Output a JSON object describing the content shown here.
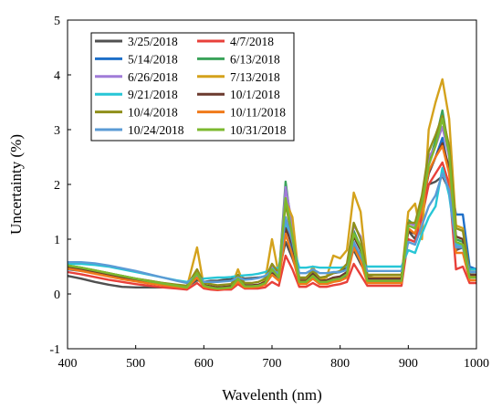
{
  "chart_data": {
    "type": "line",
    "title": "",
    "xlabel": "Wavelenth (nm)",
    "ylabel": "Uncertainty (%)",
    "xlim": [
      400,
      1000
    ],
    "ylim": [
      -1,
      5
    ],
    "xticks": [
      "400",
      "500",
      "600",
      "700",
      "800",
      "900",
      "1000"
    ],
    "yticks": [
      "-1",
      "0",
      "1",
      "2",
      "3",
      "4",
      "5"
    ],
    "grid": false,
    "legend_position": "top-left",
    "legend_labels": [
      "3/25/2018",
      "4/7/2018",
      "5/14/2018",
      "6/13/2018",
      "6/26/2018",
      "7/13/2018",
      "9/21/2018",
      "10/1/2018",
      "10/4/2018",
      "10/11/2018",
      "10/24/2018",
      "10/31/2018"
    ],
    "x": [
      400,
      420,
      440,
      460,
      480,
      500,
      520,
      540,
      560,
      575,
      590,
      600,
      610,
      620,
      630,
      640,
      650,
      660,
      670,
      680,
      690,
      700,
      710,
      720,
      730,
      740,
      750,
      760,
      770,
      780,
      790,
      800,
      810,
      820,
      830,
      840,
      850,
      860,
      870,
      880,
      890,
      900,
      910,
      920,
      930,
      940,
      950,
      960,
      970,
      980,
      990,
      1000
    ],
    "series": [
      {
        "name": "3/25/2018",
        "color": "#505050",
        "values": [
          0.33,
          0.28,
          0.22,
          0.17,
          0.13,
          0.12,
          0.12,
          0.12,
          0.12,
          0.13,
          0.25,
          0.22,
          0.24,
          0.24,
          0.26,
          0.27,
          0.32,
          0.28,
          0.29,
          0.3,
          0.32,
          0.45,
          0.4,
          0.95,
          0.65,
          0.28,
          0.28,
          0.4,
          0.28,
          0.32,
          0.38,
          0.4,
          0.5,
          0.8,
          0.55,
          0.33,
          0.3,
          0.3,
          0.3,
          0.3,
          0.3,
          1.15,
          1.0,
          1.5,
          2.0,
          2.05,
          2.15,
          1.9,
          0.8,
          0.85,
          0.45,
          0.45
        ]
      },
      {
        "name": "4/7/2018",
        "color": "#e8403a",
        "values": [
          0.4,
          0.36,
          0.31,
          0.26,
          0.22,
          0.18,
          0.15,
          0.12,
          0.1,
          0.08,
          0.2,
          0.1,
          0.08,
          0.07,
          0.08,
          0.08,
          0.18,
          0.1,
          0.1,
          0.1,
          0.12,
          0.22,
          0.15,
          0.7,
          0.45,
          0.13,
          0.13,
          0.2,
          0.13,
          0.13,
          0.16,
          0.18,
          0.22,
          0.55,
          0.35,
          0.15,
          0.15,
          0.15,
          0.15,
          0.15,
          0.15,
          1.0,
          0.95,
          1.4,
          2.0,
          2.2,
          2.4,
          2.0,
          0.45,
          0.5,
          0.2,
          0.2
        ]
      },
      {
        "name": "5/14/2018",
        "color": "#1e6fc8",
        "values": [
          0.45,
          0.42,
          0.38,
          0.33,
          0.29,
          0.25,
          0.21,
          0.18,
          0.15,
          0.12,
          0.3,
          0.15,
          0.12,
          0.1,
          0.11,
          0.12,
          0.25,
          0.14,
          0.14,
          0.15,
          0.18,
          0.35,
          0.25,
          1.3,
          0.8,
          0.2,
          0.2,
          0.3,
          0.2,
          0.2,
          0.24,
          0.26,
          0.32,
          0.95,
          0.65,
          0.22,
          0.22,
          0.22,
          0.22,
          0.22,
          0.22,
          1.25,
          1.2,
          1.6,
          2.2,
          2.5,
          2.85,
          2.2,
          1.45,
          1.45,
          0.5,
          0.45
        ]
      },
      {
        "name": "6/13/2018",
        "color": "#3aa35a",
        "values": [
          0.52,
          0.48,
          0.43,
          0.38,
          0.33,
          0.28,
          0.24,
          0.2,
          0.16,
          0.13,
          0.38,
          0.16,
          0.13,
          0.11,
          0.12,
          0.13,
          0.28,
          0.15,
          0.15,
          0.16,
          0.2,
          0.45,
          0.3,
          2.05,
          1.1,
          0.22,
          0.22,
          0.35,
          0.22,
          0.22,
          0.26,
          0.28,
          0.36,
          1.15,
          0.85,
          0.24,
          0.24,
          0.24,
          0.24,
          0.24,
          0.24,
          1.35,
          1.25,
          1.7,
          2.4,
          2.8,
          3.35,
          2.6,
          1.0,
          0.95,
          0.35,
          0.35
        ]
      },
      {
        "name": "6/26/2018",
        "color": "#a07cd8",
        "values": [
          0.5,
          0.46,
          0.41,
          0.36,
          0.31,
          0.26,
          0.22,
          0.19,
          0.15,
          0.12,
          0.4,
          0.15,
          0.12,
          0.1,
          0.11,
          0.12,
          0.3,
          0.14,
          0.14,
          0.15,
          0.2,
          0.5,
          0.3,
          1.95,
          1.25,
          0.22,
          0.22,
          0.35,
          0.22,
          0.22,
          0.27,
          0.3,
          0.4,
          1.25,
          1.05,
          0.25,
          0.25,
          0.25,
          0.25,
          0.25,
          0.25,
          1.3,
          1.25,
          1.7,
          2.5,
          2.7,
          3.05,
          2.5,
          0.9,
          0.85,
          0.3,
          0.3
        ]
      },
      {
        "name": "7/13/2018",
        "color": "#d4a21c",
        "values": [
          0.48,
          0.44,
          0.39,
          0.34,
          0.29,
          0.25,
          0.21,
          0.17,
          0.14,
          0.12,
          0.85,
          0.14,
          0.11,
          0.1,
          0.1,
          0.12,
          0.45,
          0.14,
          0.14,
          0.15,
          0.25,
          1.0,
          0.35,
          1.7,
          1.4,
          0.25,
          0.25,
          0.5,
          0.25,
          0.3,
          0.7,
          0.65,
          0.8,
          1.85,
          1.5,
          0.3,
          0.3,
          0.3,
          0.3,
          0.3,
          0.3,
          1.5,
          1.65,
          1.0,
          3.0,
          3.5,
          3.92,
          3.2,
          1.25,
          1.2,
          0.35,
          0.3
        ]
      },
      {
        "name": "9/21/2018",
        "color": "#27c6d6",
        "values": [
          0.55,
          0.55,
          0.53,
          0.5,
          0.45,
          0.4,
          0.35,
          0.3,
          0.25,
          0.22,
          0.3,
          0.28,
          0.29,
          0.3,
          0.3,
          0.31,
          0.33,
          0.34,
          0.35,
          0.37,
          0.4,
          0.45,
          0.48,
          1.3,
          0.9,
          0.48,
          0.48,
          0.5,
          0.48,
          0.48,
          0.48,
          0.48,
          0.5,
          0.85,
          0.6,
          0.5,
          0.5,
          0.5,
          0.5,
          0.5,
          0.5,
          0.8,
          0.75,
          1.1,
          1.4,
          1.6,
          2.3,
          1.8,
          0.9,
          0.9,
          0.45,
          0.45
        ]
      },
      {
        "name": "10/1/2018",
        "color": "#6b3a2e",
        "values": [
          0.5,
          0.46,
          0.41,
          0.36,
          0.31,
          0.26,
          0.22,
          0.19,
          0.16,
          0.14,
          0.3,
          0.16,
          0.14,
          0.12,
          0.13,
          0.14,
          0.28,
          0.16,
          0.16,
          0.17,
          0.22,
          0.4,
          0.3,
          1.2,
          0.9,
          0.24,
          0.24,
          0.36,
          0.24,
          0.25,
          0.3,
          0.32,
          0.4,
          1.05,
          0.8,
          0.28,
          0.28,
          0.28,
          0.28,
          0.28,
          0.28,
          1.15,
          1.1,
          1.6,
          2.2,
          2.5,
          2.75,
          2.3,
          1.05,
          1.0,
          0.35,
          0.35
        ]
      },
      {
        "name": "10/4/2018",
        "color": "#8f8f1a",
        "values": [
          0.52,
          0.48,
          0.43,
          0.38,
          0.33,
          0.28,
          0.24,
          0.2,
          0.17,
          0.15,
          0.45,
          0.2,
          0.18,
          0.16,
          0.17,
          0.18,
          0.35,
          0.2,
          0.2,
          0.22,
          0.28,
          0.55,
          0.38,
          1.65,
          1.0,
          0.3,
          0.3,
          0.42,
          0.3,
          0.32,
          0.38,
          0.42,
          0.55,
          1.3,
          1.0,
          0.35,
          0.35,
          0.35,
          0.35,
          0.35,
          0.35,
          1.3,
          1.3,
          1.8,
          2.6,
          2.9,
          3.25,
          2.7,
          1.2,
          1.15,
          0.4,
          0.4
        ]
      },
      {
        "name": "10/11/2018",
        "color": "#f07a1a",
        "values": [
          0.46,
          0.42,
          0.37,
          0.32,
          0.27,
          0.23,
          0.19,
          0.16,
          0.13,
          0.11,
          0.3,
          0.13,
          0.11,
          0.09,
          0.1,
          0.11,
          0.22,
          0.12,
          0.12,
          0.13,
          0.17,
          0.35,
          0.24,
          1.1,
          0.7,
          0.18,
          0.18,
          0.28,
          0.18,
          0.18,
          0.22,
          0.24,
          0.3,
          0.85,
          0.6,
          0.2,
          0.2,
          0.2,
          0.2,
          0.2,
          0.2,
          1.2,
          1.1,
          1.55,
          2.25,
          2.5,
          2.7,
          2.2,
          0.75,
          0.75,
          0.25,
          0.25
        ]
      },
      {
        "name": "10/24/2018",
        "color": "#5b9bd5",
        "values": [
          0.58,
          0.58,
          0.56,
          0.52,
          0.47,
          0.42,
          0.36,
          0.3,
          0.24,
          0.2,
          0.35,
          0.22,
          0.22,
          0.22,
          0.23,
          0.24,
          0.3,
          0.26,
          0.27,
          0.29,
          0.33,
          0.42,
          0.38,
          1.4,
          0.95,
          0.38,
          0.38,
          0.45,
          0.38,
          0.38,
          0.4,
          0.4,
          0.44,
          0.95,
          0.7,
          0.42,
          0.42,
          0.42,
          0.42,
          0.42,
          0.42,
          0.95,
          0.9,
          1.25,
          1.6,
          1.8,
          2.2,
          1.9,
          0.85,
          0.85,
          0.4,
          0.4
        ]
      },
      {
        "name": "10/31/2018",
        "color": "#7cb82f",
        "values": [
          0.52,
          0.48,
          0.43,
          0.38,
          0.33,
          0.28,
          0.23,
          0.19,
          0.15,
          0.12,
          0.38,
          0.15,
          0.12,
          0.1,
          0.11,
          0.12,
          0.28,
          0.14,
          0.14,
          0.15,
          0.2,
          0.45,
          0.3,
          1.75,
          1.05,
          0.22,
          0.22,
          0.33,
          0.22,
          0.22,
          0.26,
          0.28,
          0.36,
          1.1,
          0.85,
          0.24,
          0.24,
          0.24,
          0.24,
          0.24,
          0.24,
          1.25,
          1.2,
          1.65,
          2.35,
          2.7,
          3.2,
          2.55,
          0.95,
          0.9,
          0.3,
          0.3
        ]
      }
    ]
  }
}
